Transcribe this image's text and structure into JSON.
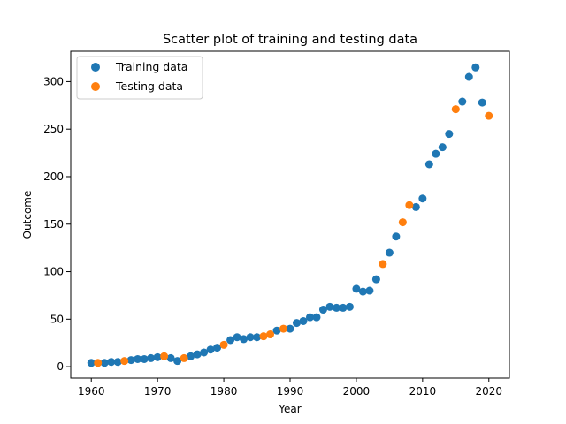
{
  "chart_data": {
    "type": "scatter",
    "title": "Scatter plot of training and testing data",
    "xlabel": "Year",
    "ylabel": "Outcome",
    "xlim": [
      1956.9,
      2023.1
    ],
    "ylim": [
      -12,
      332
    ],
    "xticks": [
      1960,
      1970,
      1980,
      1990,
      2000,
      2010,
      2020
    ],
    "yticks": [
      0,
      50,
      100,
      150,
      200,
      250,
      300
    ],
    "grid": false,
    "legend_position": "top-left",
    "series": [
      {
        "name": "Training data",
        "color": "#1f77b4",
        "points": [
          [
            1960,
            4
          ],
          [
            1962,
            4
          ],
          [
            1963,
            5
          ],
          [
            1964,
            5
          ],
          [
            1966,
            7
          ],
          [
            1967,
            8
          ],
          [
            1968,
            8
          ],
          [
            1969,
            9
          ],
          [
            1970,
            10
          ],
          [
            1972,
            9
          ],
          [
            1973,
            6
          ],
          [
            1975,
            11
          ],
          [
            1976,
            13
          ],
          [
            1977,
            15
          ],
          [
            1978,
            18
          ],
          [
            1979,
            20
          ],
          [
            1981,
            28
          ],
          [
            1982,
            31
          ],
          [
            1983,
            29
          ],
          [
            1984,
            31
          ],
          [
            1985,
            31
          ],
          [
            1988,
            38
          ],
          [
            1990,
            40
          ],
          [
            1991,
            46
          ],
          [
            1992,
            48
          ],
          [
            1993,
            52
          ],
          [
            1994,
            52
          ],
          [
            1995,
            60
          ],
          [
            1996,
            63
          ],
          [
            1997,
            62
          ],
          [
            1998,
            62
          ],
          [
            1999,
            63
          ],
          [
            2000,
            82
          ],
          [
            2001,
            79
          ],
          [
            2002,
            80
          ],
          [
            2003,
            92
          ],
          [
            2005,
            120
          ],
          [
            2006,
            137
          ],
          [
            2009,
            168
          ],
          [
            2010,
            177
          ],
          [
            2011,
            213
          ],
          [
            2012,
            224
          ],
          [
            2013,
            231
          ],
          [
            2014,
            245
          ],
          [
            2016,
            279
          ],
          [
            2017,
            305
          ],
          [
            2018,
            315
          ],
          [
            2019,
            278
          ]
        ]
      },
      {
        "name": "Testing data",
        "color": "#ff7f0e",
        "points": [
          [
            1961,
            4
          ],
          [
            1965,
            6
          ],
          [
            1971,
            11
          ],
          [
            1974,
            9
          ],
          [
            1980,
            23
          ],
          [
            1986,
            32
          ],
          [
            1987,
            34
          ],
          [
            1989,
            40
          ],
          [
            2004,
            108
          ],
          [
            2007,
            152
          ],
          [
            2008,
            170
          ],
          [
            2015,
            271
          ],
          [
            2020,
            264
          ]
        ]
      }
    ]
  }
}
